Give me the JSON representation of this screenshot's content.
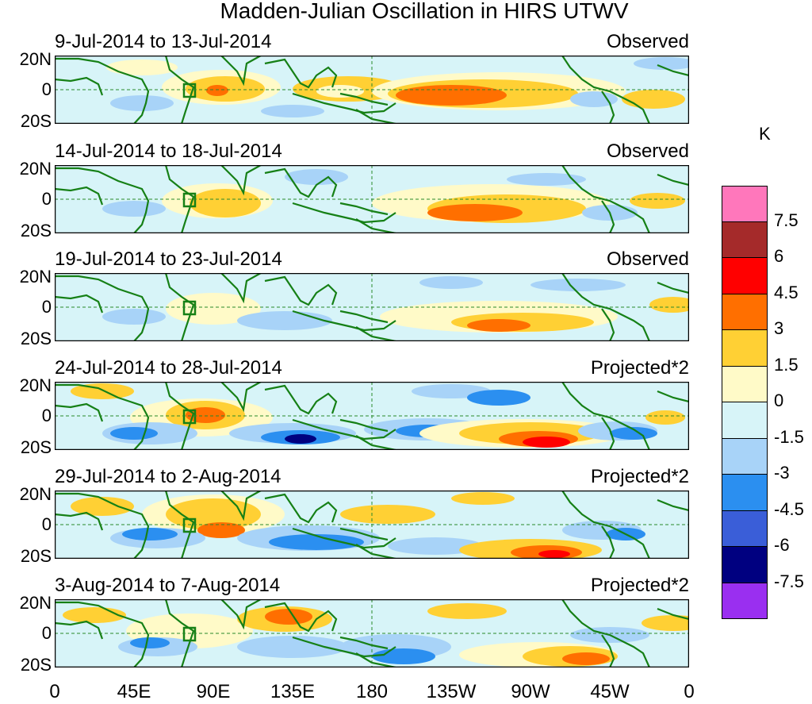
{
  "title": "Madden-Julian Oscillation in HIRS UTWV",
  "unit": "K",
  "lat_labels": [
    "20N",
    "0",
    "20S"
  ],
  "lon_labels": [
    "0",
    "45E",
    "90E",
    "135E",
    "180",
    "135W",
    "90W",
    "45W",
    "0"
  ],
  "panels": [
    {
      "date": "9-Jul-2014 to 13-Jul-2014",
      "mode": "Observed"
    },
    {
      "date": "14-Jul-2014 to 18-Jul-2014",
      "mode": "Observed"
    },
    {
      "date": "19-Jul-2014 to 23-Jul-2014",
      "mode": "Observed"
    },
    {
      "date": "24-Jul-2014 to 28-Jul-2014",
      "mode": "Projected*2"
    },
    {
      "date": "29-Jul-2014 to 2-Aug-2014",
      "mode": "Projected*2"
    },
    {
      "date": "3-Aug-2014 to 7-Aug-2014",
      "mode": "Projected*2"
    }
  ],
  "colorbar": {
    "colors": [
      "#ff77bb",
      "#a52a2a",
      "#ff0000",
      "#ff6f00",
      "#ffd034",
      "#fffac8",
      "#d7f4f8",
      "#a8d3f8",
      "#2b8ff0",
      "#3a5ed8",
      "#000080",
      "#9a2ff0"
    ],
    "labels": [
      "7.5",
      "6",
      "4.5",
      "3",
      "1.5",
      "0",
      "-1.5",
      "-3",
      "-4.5",
      "-6",
      "-7.5"
    ]
  },
  "colors": {
    "land": "#168016",
    "grid": "#2a8a2a",
    "background": "#d7f4f8"
  }
}
